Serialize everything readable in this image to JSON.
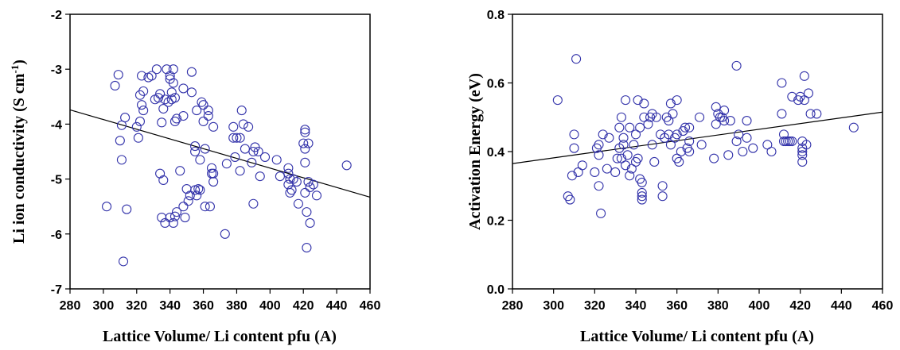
{
  "chart_data": [
    {
      "type": "scatter",
      "xlabel": "Lattice Volume/ Li content pfu (A)",
      "ylabel": "Li ion conductivity (S cm-1)",
      "ylabel_main": "Li ion conductivity (S cm",
      "ylabel_sup": "-1",
      "ylabel_end": ")",
      "xlim": [
        280,
        460
      ],
      "ylim": [
        -7,
        -2
      ],
      "xticks": [
        280,
        300,
        320,
        340,
        360,
        380,
        400,
        420,
        440,
        460
      ],
      "yticks": [
        -7,
        -6,
        -5,
        -4,
        -3,
        -2
      ],
      "trendline": {
        "x": [
          280,
          460
        ],
        "y": [
          -3.74,
          -5.33
        ]
      },
      "marker_color": "#3333aa",
      "points": [
        [
          302,
          -5.5
        ],
        [
          307,
          -3.3
        ],
        [
          309,
          -3.1
        ],
        [
          310,
          -4.3
        ],
        [
          311,
          -4.02
        ],
        [
          311,
          -4.65
        ],
        [
          312,
          -6.5
        ],
        [
          313,
          -3.88
        ],
        [
          314,
          -5.55
        ],
        [
          320,
          -4.05
        ],
        [
          321,
          -4.25
        ],
        [
          322,
          -3.95
        ],
        [
          322,
          -3.47
        ],
        [
          323,
          -3.12
        ],
        [
          323,
          -3.65
        ],
        [
          324,
          -3.75
        ],
        [
          324,
          -3.4
        ],
        [
          327,
          -3.15
        ],
        [
          329,
          -3.12
        ],
        [
          331,
          -3.55
        ],
        [
          332,
          -3.0
        ],
        [
          333,
          -3.52
        ],
        [
          334,
          -3.45
        ],
        [
          334,
          -4.9
        ],
        [
          335,
          -3.97
        ],
        [
          335,
          -5.7
        ],
        [
          336,
          -3.72
        ],
        [
          336,
          -5.02
        ],
        [
          337,
          -3.55
        ],
        [
          337,
          -5.8
        ],
        [
          338,
          -3.0
        ],
        [
          339,
          -3.6
        ],
        [
          340,
          -3.12
        ],
        [
          340,
          -3.18
        ],
        [
          340,
          -5.7
        ],
        [
          341,
          -3.42
        ],
        [
          341,
          -3.55
        ],
        [
          342,
          -3.0
        ],
        [
          342,
          -3.25
        ],
        [
          342,
          -5.8
        ],
        [
          343,
          -3.52
        ],
        [
          343,
          -3.95
        ],
        [
          343,
          -5.68
        ],
        [
          344,
          -5.6
        ],
        [
          344,
          -3.9
        ],
        [
          346,
          -4.85
        ],
        [
          348,
          -3.35
        ],
        [
          348,
          -3.85
        ],
        [
          348,
          -5.5
        ],
        [
          349,
          -5.7
        ],
        [
          350,
          -5.18
        ],
        [
          351,
          -5.4
        ],
        [
          352,
          -5.3
        ],
        [
          353,
          -3.05
        ],
        [
          353,
          -3.42
        ],
        [
          355,
          -4.4
        ],
        [
          355,
          -4.5
        ],
        [
          355,
          -5.2
        ],
        [
          356,
          -3.75
        ],
        [
          356,
          -5.3
        ],
        [
          357,
          -5.18
        ],
        [
          358,
          -4.65
        ],
        [
          358,
          -5.2
        ],
        [
          359,
          -3.6
        ],
        [
          360,
          -3.65
        ],
        [
          360,
          -3.95
        ],
        [
          361,
          -4.45
        ],
        [
          361,
          -5.5
        ],
        [
          363,
          -3.75
        ],
        [
          363,
          -3.85
        ],
        [
          364,
          -5.5
        ],
        [
          365,
          -4.8
        ],
        [
          365,
          -4.9
        ],
        [
          366,
          -4.9
        ],
        [
          366,
          -4.05
        ],
        [
          366,
          -5.05
        ],
        [
          373,
          -6.0
        ],
        [
          374,
          -4.72
        ],
        [
          378,
          -4.05
        ],
        [
          378,
          -4.25
        ],
        [
          379,
          -4.6
        ],
        [
          380,
          -4.25
        ],
        [
          382,
          -4.85
        ],
        [
          382,
          -4.25
        ],
        [
          383,
          -3.75
        ],
        [
          384,
          -4.0
        ],
        [
          385,
          -4.45
        ],
        [
          387,
          -4.05
        ],
        [
          389,
          -4.7
        ],
        [
          390,
          -5.45
        ],
        [
          390,
          -4.5
        ],
        [
          391,
          -4.42
        ],
        [
          393,
          -4.5
        ],
        [
          394,
          -4.95
        ],
        [
          397,
          -4.6
        ],
        [
          404,
          -4.65
        ],
        [
          406,
          -4.95
        ],
        [
          411,
          -4.8
        ],
        [
          411,
          -4.9
        ],
        [
          411,
          -5.1
        ],
        [
          412,
          -5.0
        ],
        [
          412,
          -5.25
        ],
        [
          413,
          -5.2
        ],
        [
          414,
          -5.0
        ],
        [
          416,
          -5.05
        ],
        [
          417,
          -5.45
        ],
        [
          420,
          -4.35
        ],
        [
          421,
          -4.1
        ],
        [
          421,
          -4.15
        ],
        [
          421,
          -4.45
        ],
        [
          421,
          -4.7
        ],
        [
          422,
          -5.6
        ],
        [
          422,
          -6.25
        ],
        [
          423,
          -4.35
        ],
        [
          423,
          -5.05
        ],
        [
          424,
          -5.15
        ],
        [
          424,
          -5.8
        ],
        [
          426,
          -5.1
        ],
        [
          428,
          -5.3
        ],
        [
          446,
          -4.75
        ],
        [
          421,
          -5.25
        ]
      ]
    },
    {
      "type": "scatter",
      "xlabel": "Lattice Volume/ Li content pfu (A)",
      "ylabel": "Activation Energy (eV)",
      "xlim": [
        280,
        460
      ],
      "ylim": [
        0.0,
        0.8
      ],
      "xticks": [
        280,
        300,
        320,
        340,
        360,
        380,
        400,
        420,
        440,
        460
      ],
      "yticks": [
        "0.0",
        "0.2",
        "0.4",
        "0.6",
        "0.8"
      ],
      "trendline": {
        "x": [
          280,
          460
        ],
        "y": [
          0.365,
          0.515
        ]
      },
      "marker_color": "#3333aa",
      "points": [
        [
          302,
          0.55
        ],
        [
          307,
          0.27
        ],
        [
          308,
          0.26
        ],
        [
          309,
          0.33
        ],
        [
          310,
          0.45
        ],
        [
          310,
          0.41
        ],
        [
          311,
          0.67
        ],
        [
          312,
          0.34
        ],
        [
          314,
          0.36
        ],
        [
          320,
          0.34
        ],
        [
          321,
          0.41
        ],
        [
          322,
          0.39
        ],
        [
          322,
          0.42
        ],
        [
          322,
          0.3
        ],
        [
          323,
          0.22
        ],
        [
          324,
          0.45
        ],
        [
          326,
          0.35
        ],
        [
          327,
          0.44
        ],
        [
          330,
          0.34
        ],
        [
          331,
          0.38
        ],
        [
          332,
          0.41
        ],
        [
          332,
          0.47
        ],
        [
          333,
          0.5
        ],
        [
          333,
          0.38
        ],
        [
          334,
          0.44
        ],
        [
          334,
          0.42
        ],
        [
          335,
          0.55
        ],
        [
          335,
          0.36
        ],
        [
          336,
          0.39
        ],
        [
          337,
          0.47
        ],
        [
          337,
          0.33
        ],
        [
          338,
          0.35
        ],
        [
          339,
          0.42
        ],
        [
          340,
          0.37
        ],
        [
          340,
          0.45
        ],
        [
          341,
          0.38
        ],
        [
          341,
          0.55
        ],
        [
          342,
          0.47
        ],
        [
          342,
          0.32
        ],
        [
          343,
          0.31
        ],
        [
          343,
          0.28
        ],
        [
          343,
          0.27
        ],
        [
          343,
          0.26
        ],
        [
          344,
          0.5
        ],
        [
          344,
          0.54
        ],
        [
          346,
          0.48
        ],
        [
          347,
          0.5
        ],
        [
          348,
          0.51
        ],
        [
          348,
          0.42
        ],
        [
          349,
          0.37
        ],
        [
          350,
          0.5
        ],
        [
          352,
          0.45
        ],
        [
          353,
          0.3
        ],
        [
          353,
          0.27
        ],
        [
          354,
          0.44
        ],
        [
          355,
          0.5
        ],
        [
          356,
          0.45
        ],
        [
          356,
          0.49
        ],
        [
          357,
          0.42
        ],
        [
          357,
          0.54
        ],
        [
          358,
          0.51
        ],
        [
          359,
          0.44
        ],
        [
          360,
          0.38
        ],
        [
          360,
          0.45
        ],
        [
          360,
          0.55
        ],
        [
          361,
          0.37
        ],
        [
          362,
          0.4
        ],
        [
          363,
          0.46
        ],
        [
          364,
          0.47
        ],
        [
          365,
          0.41
        ],
        [
          366,
          0.43
        ],
        [
          366,
          0.4
        ],
        [
          366,
          0.47
        ],
        [
          371,
          0.5
        ],
        [
          372,
          0.42
        ],
        [
          378,
          0.38
        ],
        [
          379,
          0.48
        ],
        [
          379,
          0.53
        ],
        [
          380,
          0.51
        ],
        [
          381,
          0.5
        ],
        [
          382,
          0.5
        ],
        [
          383,
          0.52
        ],
        [
          383,
          0.49
        ],
        [
          385,
          0.39
        ],
        [
          386,
          0.49
        ],
        [
          389,
          0.43
        ],
        [
          389,
          0.65
        ],
        [
          390,
          0.45
        ],
        [
          392,
          0.4
        ],
        [
          394,
          0.44
        ],
        [
          394,
          0.49
        ],
        [
          397,
          0.41
        ],
        [
          404,
          0.42
        ],
        [
          406,
          0.4
        ],
        [
          411,
          0.6
        ],
        [
          411,
          0.51
        ],
        [
          412,
          0.45
        ],
        [
          412,
          0.43
        ],
        [
          413,
          0.43
        ],
        [
          414,
          0.43
        ],
        [
          415,
          0.43
        ],
        [
          416,
          0.56
        ],
        [
          416,
          0.43
        ],
        [
          419,
          0.55
        ],
        [
          420,
          0.56
        ],
        [
          421,
          0.43
        ],
        [
          421,
          0.41
        ],
        [
          421,
          0.4
        ],
        [
          421,
          0.37
        ],
        [
          422,
          0.62
        ],
        [
          422,
          0.55
        ],
        [
          423,
          0.42
        ],
        [
          424,
          0.57
        ],
        [
          425,
          0.51
        ],
        [
          428,
          0.51
        ],
        [
          446,
          0.47
        ],
        [
          421,
          0.39
        ]
      ]
    }
  ]
}
